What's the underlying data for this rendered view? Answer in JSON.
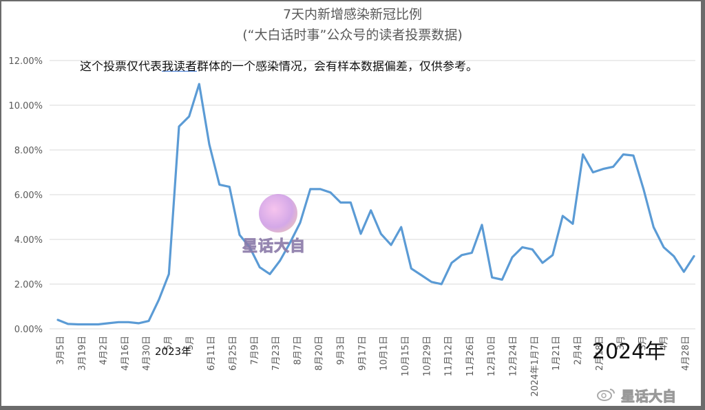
{
  "title": "7天内新增感染新冠比例",
  "subtitle": "(“大白话时事”公众号的读者投票数据)",
  "note_before": "这个投票仅代表",
  "note_underlined": "我读者",
  "note_after": "群体的一个感染情况，会有样本数据偏差，仅供参考。",
  "annotation_2023": "2023年",
  "annotation_2024": "2024年",
  "watermark_center": "星话大自",
  "watermark_corner": "星话大自",
  "watermark_icons": [
    "sticker-logo-icon",
    "weibo-logo-icon"
  ],
  "colors": {
    "line": "#5b9bd5",
    "grid": "#d9d9d9",
    "axis_text": "#595959"
  },
  "chart_data": {
    "type": "line",
    "title": "7天内新增感染新冠比例",
    "ylabel": "",
    "xlabel": "",
    "ylim": [
      0,
      0.12
    ],
    "yticks": [
      "0.00%",
      "2.00%",
      "4.00%",
      "6.00%",
      "8.00%",
      "10.00%",
      "12.00%"
    ],
    "grid": true,
    "legend": "none",
    "x_tick_labels": [
      "3月5日",
      "3月19日",
      "4月2日",
      "4月16日",
      "4月30日",
      "5月",
      "5月",
      "6月11日",
      "6月25日",
      "7月9日",
      "7月23日",
      "8月7日",
      "8月20日",
      "9月3日",
      "9月17日",
      "10月1日",
      "10月15日",
      "10月29日",
      "11月12日",
      "11月26日",
      "12月10日",
      "12月24日",
      "2024年1月7日",
      "1月21日",
      "2月4日",
      "2月18日",
      "3月",
      "3月",
      "4月",
      "4月28日"
    ],
    "series": [
      {
        "values": [
          0.004,
          0.0022,
          0.002,
          0.002,
          0.002,
          0.0025,
          0.003,
          0.003,
          0.0025,
          0.0035,
          0.013,
          0.0245,
          0.0905,
          0.095,
          0.1095,
          0.0825,
          0.0645,
          0.0635,
          0.042,
          0.0365,
          0.0275,
          0.0245,
          0.0305,
          0.0385,
          0.0475,
          0.0625,
          0.0625,
          0.061,
          0.0565,
          0.0565,
          0.0425,
          0.053,
          0.0425,
          0.0375,
          0.0455,
          0.027,
          0.024,
          0.021,
          0.02,
          0.0295,
          0.033,
          0.034,
          0.0465,
          0.023,
          0.022,
          0.032,
          0.0365,
          0.0355,
          0.0295,
          0.033,
          0.0505,
          0.047,
          0.078,
          0.07,
          0.0715,
          0.0725,
          0.078,
          0.0775,
          0.0625,
          0.0455,
          0.0365,
          0.0325,
          0.0255,
          0.0325
        ]
      }
    ]
  }
}
